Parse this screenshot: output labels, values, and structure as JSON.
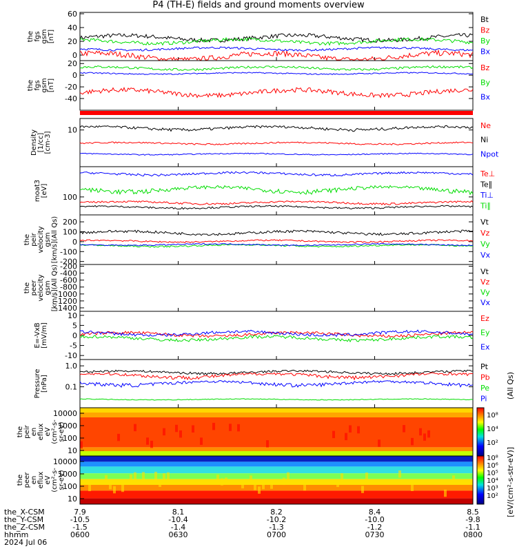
{
  "title": "P4 (TH-E) fields and ground moments overview",
  "date_label": "2024 Jul 06",
  "colors": {
    "black": "#000000",
    "red": "#ff0000",
    "green": "#00dd00",
    "blue": "#0000ff"
  },
  "footer": {
    "row_labels": [
      "the_X-CSM",
      "the_Y-CSM",
      "the_Z-CSM",
      "hhmm"
    ],
    "columns": [
      {
        "x": "7.9",
        "y": "-10.5",
        "z": "-1.5",
        "t": "0600"
      },
      {
        "x": "8.1",
        "y": "-10.4",
        "z": "-1.4",
        "t": "0630"
      },
      {
        "x": "8.2",
        "y": "-10.2",
        "z": "-1.3",
        "t": "0700"
      },
      {
        "x": "8.4",
        "y": "-10.0",
        "z": "-1.2",
        "t": "0730"
      },
      {
        "x": "8.5",
        "y": "-9.8",
        "z": "-1.1",
        "t": "0800"
      }
    ]
  },
  "colorbar": {
    "label": "[eV/(cm²-s-str-eV)]",
    "label_ion": "(All Qs)",
    "ion_ticks": [
      "10⁸",
      "10⁴",
      "10²"
    ],
    "elec_ticks": [
      "10⁸",
      "10⁶",
      "10⁵",
      "10⁴",
      "10³",
      "10²"
    ]
  },
  "chart_data": [
    {
      "type": "line",
      "id": "fgs_bt",
      "ylabel": [
        "the",
        "fgs",
        "gsm",
        "[nT]"
      ],
      "yticks": [
        "60",
        "40",
        "20",
        "0"
      ],
      "ylim": [
        -8,
        62
      ],
      "series": [
        {
          "name": "Bt",
          "color": "black",
          "base": 25,
          "noise": 6
        },
        {
          "name": "Bz",
          "color": "red",
          "base": -2,
          "noise": 8
        },
        {
          "name": "By",
          "color": "green",
          "base": 20,
          "noise": 5
        },
        {
          "name": "Bx",
          "color": "blue",
          "base": 9,
          "noise": 3
        }
      ]
    },
    {
      "type": "line",
      "id": "fgs",
      "ylabel": [
        "the",
        "fgs",
        "gsm",
        "[nT]"
      ],
      "yticks": [
        "20",
        "0",
        "-20",
        "-40"
      ],
      "ylim": [
        -60,
        25
      ],
      "series": [
        {
          "name": "Bz",
          "color": "red",
          "base": -30,
          "noise": 8
        },
        {
          "name": "By",
          "color": "green",
          "base": 12,
          "noise": 4
        },
        {
          "name": "Bx",
          "color": "blue",
          "base": 3,
          "noise": 2
        }
      ]
    },
    {
      "type": "line",
      "id": "density",
      "ylabel": [
        "Density",
        "[1/cc]",
        "[cm-3]"
      ],
      "yticks": [
        "10"
      ],
      "log": true,
      "ylim": [
        0.3,
        30
      ],
      "series": [
        {
          "name": "Ne",
          "color": "red",
          "base": 2.8,
          "noise": 0.4
        },
        {
          "name": "Ni",
          "color": "black",
          "base": 12,
          "noise": 3
        },
        {
          "name": "Npot",
          "color": "blue",
          "base": 1.0,
          "noise": 0.1
        }
      ]
    },
    {
      "type": "line",
      "id": "temp",
      "ylabel": [
        "moat3",
        "[eV]"
      ],
      "yticks": [
        "100"
      ],
      "log": true,
      "ylim": [
        20,
        1500
      ],
      "series": [
        {
          "name": "Te⊥",
          "color": "red",
          "base": 60,
          "noise": 10
        },
        {
          "name": "Te∥",
          "color": "black",
          "base": 40,
          "noise": 6
        },
        {
          "name": "Ti⊥",
          "color": "blue",
          "base": 800,
          "noise": 150
        },
        {
          "name": "Ti∥",
          "color": "green",
          "base": 200,
          "noise": 70
        }
      ]
    },
    {
      "type": "line",
      "id": "peir_v",
      "ylabel": [
        "the",
        "peir",
        "velocity",
        "gsm",
        "[km/s](All Qs)"
      ],
      "yticks": [
        "200",
        "100",
        "0",
        "-100",
        "-200"
      ],
      "ylim": [
        -230,
        270
      ],
      "series": [
        {
          "name": "Vt",
          "color": "black",
          "base": 90,
          "noise": 25
        },
        {
          "name": "Vz",
          "color": "red",
          "base": 5,
          "noise": 15
        },
        {
          "name": "Vy",
          "color": "green",
          "base": -40,
          "noise": 15
        },
        {
          "name": "Vx",
          "color": "blue",
          "base": -30,
          "noise": 12
        }
      ]
    },
    {
      "type": "line",
      "id": "peer_v",
      "empty": true,
      "ylabel": [
        "the",
        "peer",
        "velocity",
        "gsm",
        "[km/s](All Qs)"
      ],
      "yticks": [
        "-200",
        "-400",
        "-600",
        "-800",
        "-1000",
        "-1200",
        "-1400"
      ],
      "ylim": [
        -1500,
        -150
      ],
      "series": [
        {
          "name": "Vt",
          "color": "black"
        },
        {
          "name": "Vz",
          "color": "red"
        },
        {
          "name": "Vy",
          "color": "green"
        },
        {
          "name": "Vx",
          "color": "blue"
        }
      ]
    },
    {
      "type": "line",
      "id": "efield",
      "ylabel": [
        "E=-VxB",
        "[mV/m]"
      ],
      "yticks": [
        "10",
        "5",
        "0",
        "-5",
        "-10"
      ],
      "ylim": [
        -12,
        12
      ],
      "series": [
        {
          "name": "Ez",
          "color": "red",
          "base": 0.5,
          "noise": 1.5
        },
        {
          "name": "Ey",
          "color": "green",
          "base": -1.5,
          "noise": 1.5
        },
        {
          "name": "Ex",
          "color": "blue",
          "base": 1,
          "noise": 1.5
        }
      ]
    },
    {
      "type": "line",
      "id": "pressure",
      "ylabel": [
        "Pressure",
        "[nPa]"
      ],
      "yticks": [
        "1.0",
        "0.1"
      ],
      "log": true,
      "ylim": [
        0.01,
        2.0
      ],
      "series": [
        {
          "name": "Pt",
          "color": "black",
          "base": 0.5,
          "noise": 0.12
        },
        {
          "name": "Pb",
          "color": "red",
          "base": 0.35,
          "noise": 0.12
        },
        {
          "name": "Pe",
          "color": "green",
          "base": 0.025,
          "noise": 0.002
        },
        {
          "name": "Pi",
          "color": "blue",
          "base": 0.15,
          "noise": 0.05
        }
      ]
    },
    {
      "type": "heatmap",
      "id": "peir_spec",
      "ylabel": [
        "the",
        "peir",
        "en",
        "eflux",
        "eV",
        "(cm²-s-",
        "sr-eV)"
      ],
      "yticks": [
        "10000",
        "1000",
        "100",
        "10"
      ]
    },
    {
      "type": "heatmap",
      "id": "peer_spec",
      "ylabel": [
        "the",
        "peer",
        "en",
        "eflux",
        "eV",
        "(cm²-s-",
        "sr-eV)"
      ],
      "yticks": [
        "10000",
        "1000",
        "100",
        "10"
      ]
    }
  ]
}
